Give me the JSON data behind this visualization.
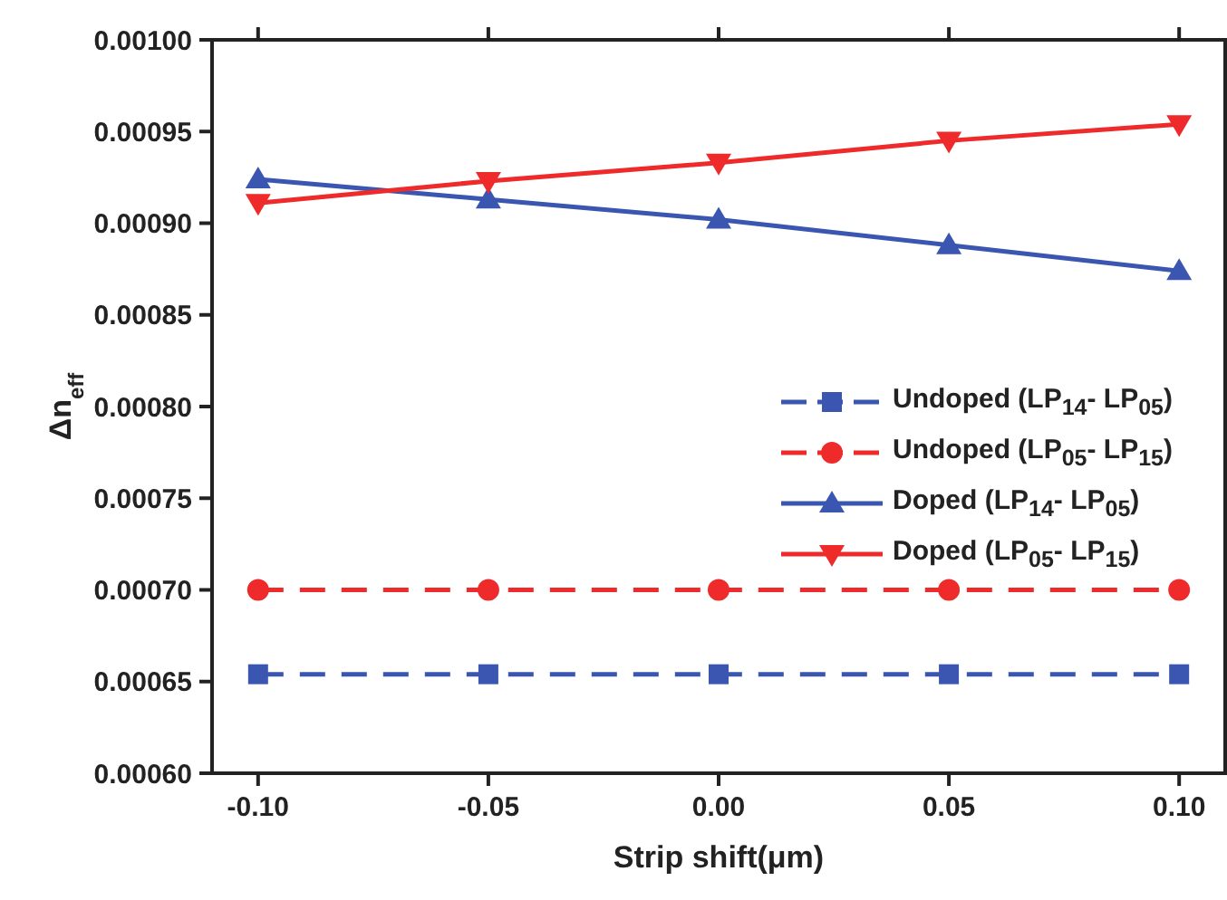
{
  "chart_data": {
    "type": "line",
    "xlabel": "Strip shift(μm)",
    "ylabel": "Δn$_{eff}$",
    "x": [
      -0.1,
      -0.05,
      0,
      0.05,
      0.1
    ],
    "xlim": [
      -0.11,
      0.11
    ],
    "xticks": [
      {
        "value": -0.1,
        "label": "-0.10"
      },
      {
        "value": -0.05,
        "label": "-0.05"
      },
      {
        "value": 0,
        "label": "0.00"
      },
      {
        "value": 0.05,
        "label": "0.05"
      },
      {
        "value": 0.1,
        "label": "0.10"
      }
    ],
    "ylim": [
      0.0006,
      0.001
    ],
    "yticks": [
      {
        "value": 0.0006,
        "label": "0.00060"
      },
      {
        "value": 0.00065,
        "label": "0.00065"
      },
      {
        "value": 0.0007,
        "label": "0.00070"
      },
      {
        "value": 0.00075,
        "label": "0.00075"
      },
      {
        "value": 0.0008,
        "label": "0.00080"
      },
      {
        "value": 0.00085,
        "label": "0.00085"
      },
      {
        "value": 0.0009,
        "label": "0.00090"
      },
      {
        "value": 0.00095,
        "label": "0.00095"
      },
      {
        "value": 0.001,
        "label": "0.00100"
      }
    ],
    "grid": false,
    "legend": "right",
    "series": [
      {
        "name": "Undoped (LP$_{14}$- LP$_{05}$)",
        "color": "#3a56b0",
        "marker": "square",
        "line_style": "dashed",
        "values": [
          0.000654,
          0.000654,
          0.000654,
          0.000654,
          0.000654
        ]
      },
      {
        "name": "Undoped (LP$_{05}$- LP$_{15}$)",
        "color": "#ee2a2a",
        "marker": "circle",
        "line_style": "dashed",
        "values": [
          0.0007,
          0.0007,
          0.0007,
          0.0007,
          0.0007
        ]
      },
      {
        "name": "Doped (LP$_{14}$- LP$_{05}$)",
        "color": "#3a56b0",
        "marker": "triangle",
        "line_style": "solid",
        "values": [
          0.000924,
          0.000913,
          0.000902,
          0.000888,
          0.000874
        ]
      },
      {
        "name": "Doped (LP$_{05}$- LP$_{15}$)",
        "color": "#ee2a2a",
        "marker": "triangle-down",
        "line_style": "solid",
        "values": [
          0.000911,
          0.000923,
          0.000933,
          0.000945,
          0.000954
        ]
      }
    ]
  }
}
